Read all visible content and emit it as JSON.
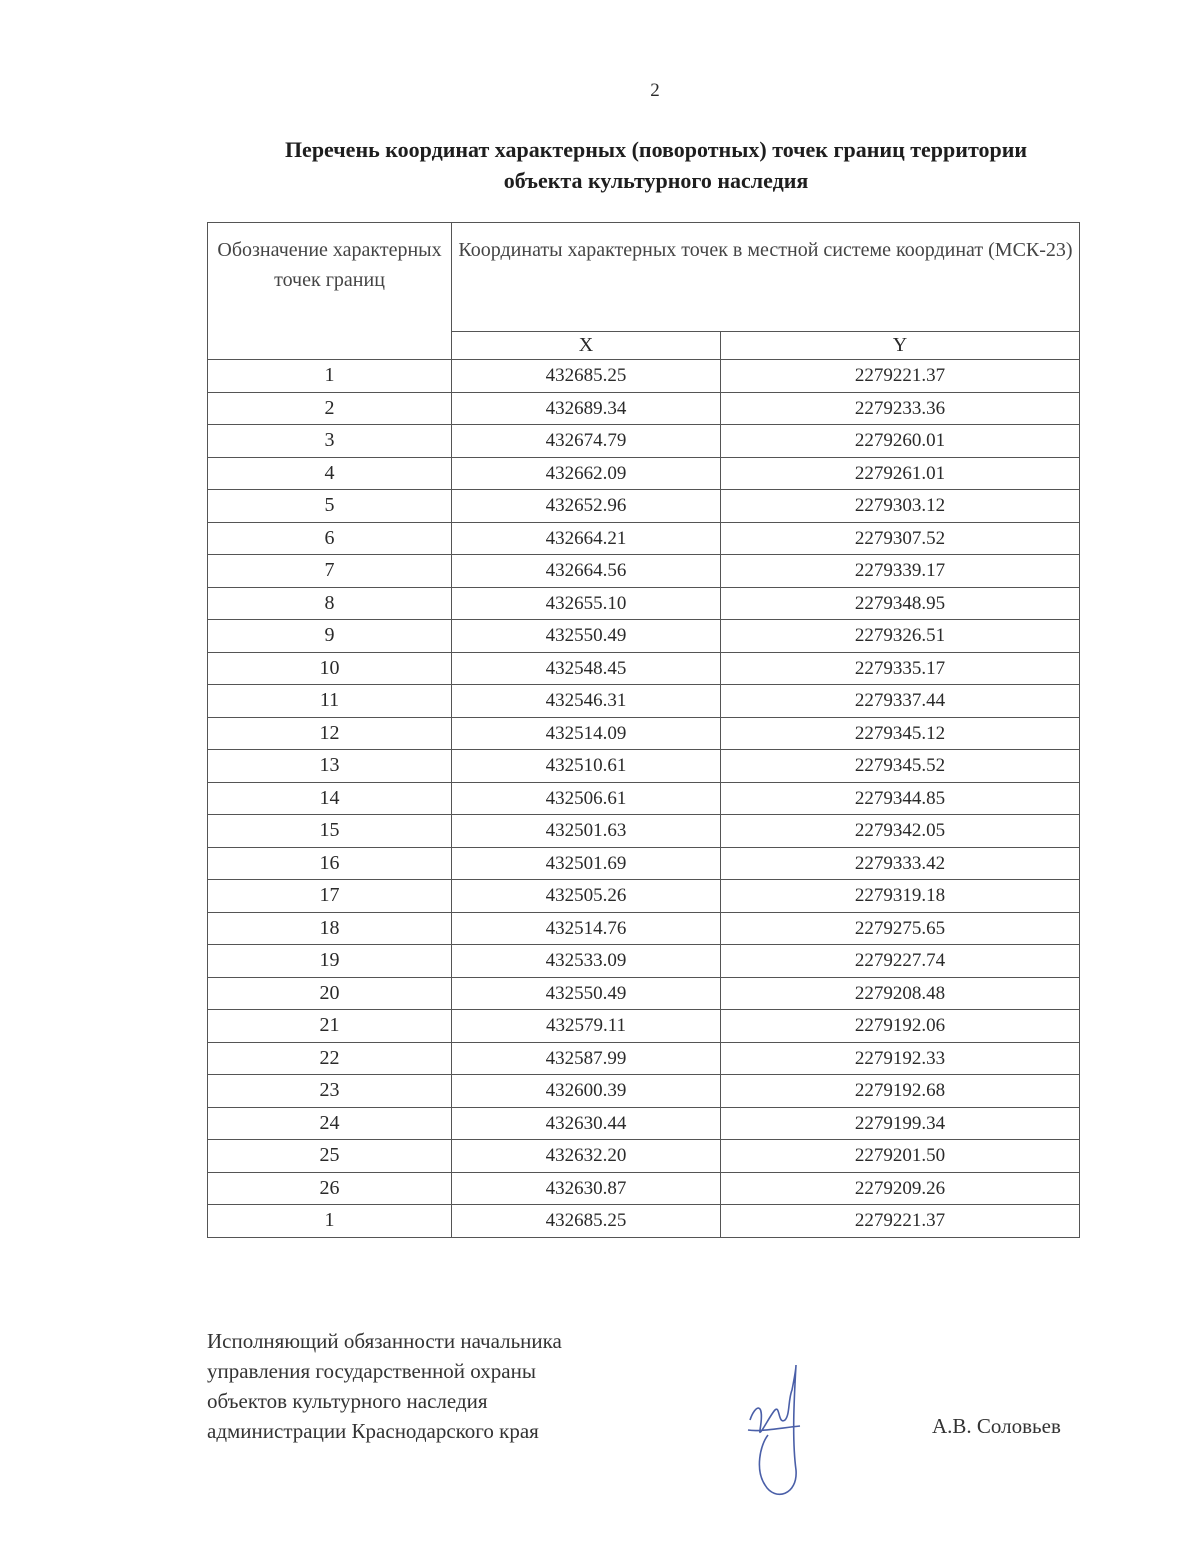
{
  "page_number": "2",
  "title": {
    "line1": "Перечень координат характерных (поворотных) точек границ территории",
    "line2": "объекта культурного наследия"
  },
  "table": {
    "header_point": "Обозначение характерных точек границ",
    "header_coords": "Координаты характерных точек в местной системе координат (МСК-23)",
    "header_x": "X",
    "header_y": "Y",
    "rows": [
      [
        "1",
        "432685.25",
        "2279221.37"
      ],
      [
        "2",
        "432689.34",
        "2279233.36"
      ],
      [
        "3",
        "432674.79",
        "2279260.01"
      ],
      [
        "4",
        "432662.09",
        "2279261.01"
      ],
      [
        "5",
        "432652.96",
        "2279303.12"
      ],
      [
        "6",
        "432664.21",
        "2279307.52"
      ],
      [
        "7",
        "432664.56",
        "2279339.17"
      ],
      [
        "8",
        "432655.10",
        "2279348.95"
      ],
      [
        "9",
        "432550.49",
        "2279326.51"
      ],
      [
        "10",
        "432548.45",
        "2279335.17"
      ],
      [
        "11",
        "432546.31",
        "2279337.44"
      ],
      [
        "12",
        "432514.09",
        "2279345.12"
      ],
      [
        "13",
        "432510.61",
        "2279345.52"
      ],
      [
        "14",
        "432506.61",
        "2279344.85"
      ],
      [
        "15",
        "432501.63",
        "2279342.05"
      ],
      [
        "16",
        "432501.69",
        "2279333.42"
      ],
      [
        "17",
        "432505.26",
        "2279319.18"
      ],
      [
        "18",
        "432514.76",
        "2279275.65"
      ],
      [
        "19",
        "432533.09",
        "2279227.74"
      ],
      [
        "20",
        "432550.49",
        "2279208.48"
      ],
      [
        "21",
        "432579.11",
        "2279192.06"
      ],
      [
        "22",
        "432587.99",
        "2279192.33"
      ],
      [
        "23",
        "432600.39",
        "2279192.68"
      ],
      [
        "24",
        "432630.44",
        "2279199.34"
      ],
      [
        "25",
        "432632.20",
        "2279201.50"
      ],
      [
        "26",
        "432630.87",
        "2279209.26"
      ],
      [
        "1",
        "432685.25",
        "2279221.37"
      ]
    ]
  },
  "signature_block": {
    "lines": [
      "Исполняющий обязанности начальника",
      "управления государственной охраны",
      "объектов культурного наследия",
      "администрации Краснодарского края"
    ],
    "signer": "А.В. Соловьев",
    "signature_color": "#4a5fa8"
  }
}
